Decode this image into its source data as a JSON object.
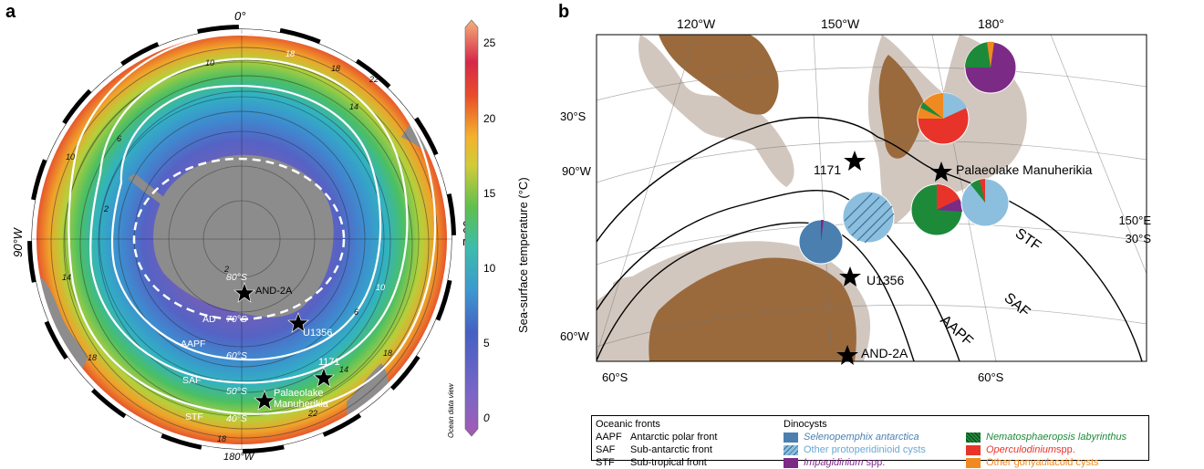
{
  "panel_a": {
    "letter": "a",
    "lon_labels": {
      "top": "0°",
      "left": "90°W",
      "right": "90°E",
      "bottom": "180°W"
    },
    "lat_labels": [
      "80°S",
      "70°S",
      "60°S",
      "50°S",
      "40°S"
    ],
    "front_labels": [
      "AD",
      "AAPF",
      "SAF",
      "STF"
    ],
    "isotherm_labels": [
      "18",
      "10",
      "18",
      "22",
      "14",
      "6",
      "10",
      "2",
      "2",
      "14",
      "10",
      "6",
      "14",
      "22",
      "18",
      "18",
      "22",
      "18"
    ],
    "sites": [
      "AND-2A",
      "U1356",
      "1171",
      "Palaeolake",
      "Manuherikia"
    ],
    "watermark": "Ocean data view",
    "colorbar": {
      "title": "Sea-surface temperature (°C)",
      "ticks": [
        "25",
        "20",
        "15",
        "10",
        "5",
        "0"
      ]
    }
  },
  "panel_b": {
    "letter": "b",
    "lon_labels": [
      "120°W",
      "150°W",
      "180°"
    ],
    "edge_labels": [
      "30°S",
      "90°W",
      "60°W",
      "150°E",
      "30°S",
      "60°S",
      "60°S"
    ],
    "sites": [
      "1171",
      "Palaeolake Manuherikia",
      "U1356",
      "AND-2A"
    ],
    "front_labels": [
      "STF",
      "SAF",
      "AAPF"
    ]
  },
  "legend": {
    "fronts_title": "Oceanic fronts",
    "fronts": [
      {
        "abbr": "AAPF",
        "name": "Antarctic polar front"
      },
      {
        "abbr": "SAF",
        "name": "Sub-antarctic front"
      },
      {
        "abbr": "STF",
        "name": "Sub-tropical front"
      }
    ],
    "dino_title": "Dinocysts",
    "dinocysts": [
      {
        "name": "Selenopemphix antarctica",
        "color": "#4a7fb0"
      },
      {
        "name": "Other protoperidinioid cysts",
        "color": "#8cbfdd"
      },
      {
        "name": "Impagidinium",
        "suffix": " spp.",
        "color": "#7b2a86"
      },
      {
        "name": "Nematosphaeropsis labyrinthus",
        "color": "#1d8a3a"
      },
      {
        "name": "Operculodinium",
        "suffix": "spp.",
        "color": "#e8332a"
      },
      {
        "name": "Other gonyaulacoid cysts",
        "color": "#f08a20"
      }
    ]
  }
}
